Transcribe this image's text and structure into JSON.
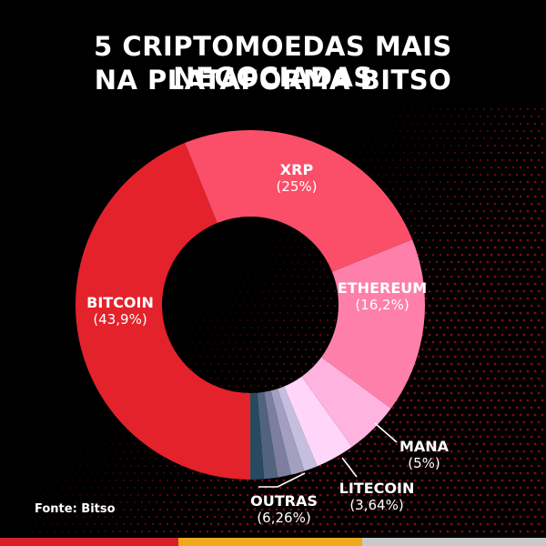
{
  "title_lines": [
    "5 CRIPTOMOEDAS MAIS NEGOCIADAS",
    "NA PLATAFORMA BITSO"
  ],
  "source": "Fonte: Bitso",
  "colors": {
    "background": "#000000",
    "dots": "#7a0d12",
    "bar": [
      "#d81f28",
      "#f0a81c",
      "#c9c9c9"
    ]
  },
  "chart_data": {
    "type": "pie",
    "title": "5 CRIPTOMOEDAS MAIS NEGOCIADAS NA PLATAFORMA BITSO",
    "donut": true,
    "slices": [
      {
        "label": "BITCOIN",
        "value_text": "(43,9%)",
        "value": 43.9,
        "color": "#e3222b"
      },
      {
        "label": "XRP",
        "value_text": "(25%)",
        "value": 25.0,
        "color": "#fb4e69"
      },
      {
        "label": "ETHEREUM",
        "value_text": "(16,2%)",
        "value": 16.2,
        "color": "#fe7fa9"
      },
      {
        "label": "MANA",
        "value_text": "(5%)",
        "value": 5.0,
        "color": "#ffb3df"
      },
      {
        "label": "LITECOIN",
        "value_text": "(3,64%)",
        "value": 3.64,
        "color": "#ffd6fa"
      },
      {
        "label": "OUTRAS",
        "value_text": "(6,26%)",
        "value": 6.26,
        "color": "#56607a",
        "sub_slices": [
          {
            "value": 1.25,
            "color": "#c5bfdf"
          },
          {
            "value": 1.25,
            "color": "#a29fc0"
          },
          {
            "value": 1.25,
            "color": "#7d7ea0"
          },
          {
            "value": 1.25,
            "color": "#52637f"
          },
          {
            "value": 1.26,
            "color": "#274a5e"
          }
        ]
      }
    ]
  }
}
